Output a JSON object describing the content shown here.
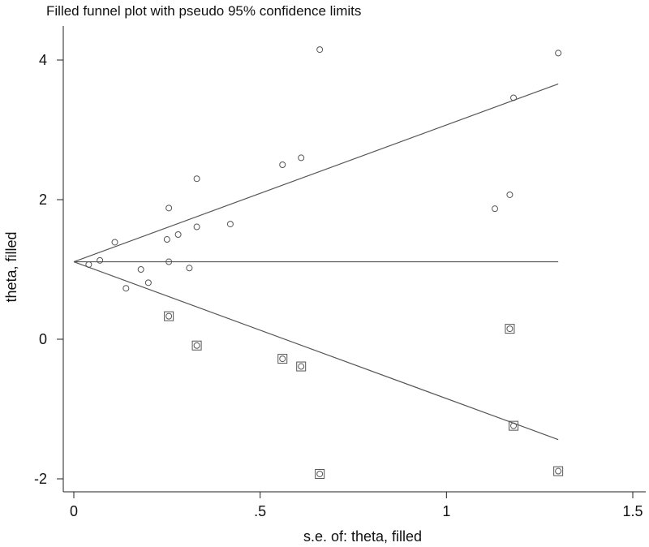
{
  "chart_data": {
    "type": "scatter",
    "title": "Filled funnel plot with pseudo 95% confidence limits",
    "xlabel": "s.e. of: theta, filled",
    "ylabel": "theta, filled",
    "xlim": [
      0,
      1.5
    ],
    "ylim": [
      -2,
      4
    ],
    "xticks": [
      {
        "value": 0,
        "label": "0"
      },
      {
        "value": 0.5,
        "label": ".5"
      },
      {
        "value": 1,
        "label": "1"
      },
      {
        "value": 1.5,
        "label": "1.5"
      }
    ],
    "yticks": [
      {
        "value": -2,
        "label": "-2"
      },
      {
        "value": 0,
        "label": "0"
      },
      {
        "value": 2,
        "label": "2"
      },
      {
        "value": 4,
        "label": "4"
      }
    ],
    "pooled_estimate": 1.11,
    "funnel_se_max": 1.3,
    "observed": [
      {
        "x": 0.04,
        "y": 1.07
      },
      {
        "x": 0.07,
        "y": 1.13
      },
      {
        "x": 0.11,
        "y": 1.39
      },
      {
        "x": 0.14,
        "y": 0.73
      },
      {
        "x": 0.18,
        "y": 1.0
      },
      {
        "x": 0.2,
        "y": 0.81
      },
      {
        "x": 0.25,
        "y": 1.43
      },
      {
        "x": 0.255,
        "y": 1.88
      },
      {
        "x": 0.255,
        "y": 1.11
      },
      {
        "x": 0.28,
        "y": 1.5
      },
      {
        "x": 0.31,
        "y": 1.02
      },
      {
        "x": 0.33,
        "y": 2.3
      },
      {
        "x": 0.33,
        "y": 1.61
      },
      {
        "x": 0.42,
        "y": 1.65
      },
      {
        "x": 0.56,
        "y": 2.5
      },
      {
        "x": 0.61,
        "y": 2.6
      },
      {
        "x": 0.66,
        "y": 4.15
      },
      {
        "x": 1.13,
        "y": 1.87
      },
      {
        "x": 1.17,
        "y": 2.07
      },
      {
        "x": 1.18,
        "y": 3.46
      },
      {
        "x": 1.3,
        "y": 4.1
      }
    ],
    "filled": [
      {
        "x": 0.255,
        "y": 0.33
      },
      {
        "x": 0.33,
        "y": -0.09
      },
      {
        "x": 0.56,
        "y": -0.28
      },
      {
        "x": 0.61,
        "y": -0.39
      },
      {
        "x": 0.66,
        "y": -1.93
      },
      {
        "x": 1.17,
        "y": 0.15
      },
      {
        "x": 1.18,
        "y": -1.24
      },
      {
        "x": 1.3,
        "y": -1.89
      }
    ]
  }
}
